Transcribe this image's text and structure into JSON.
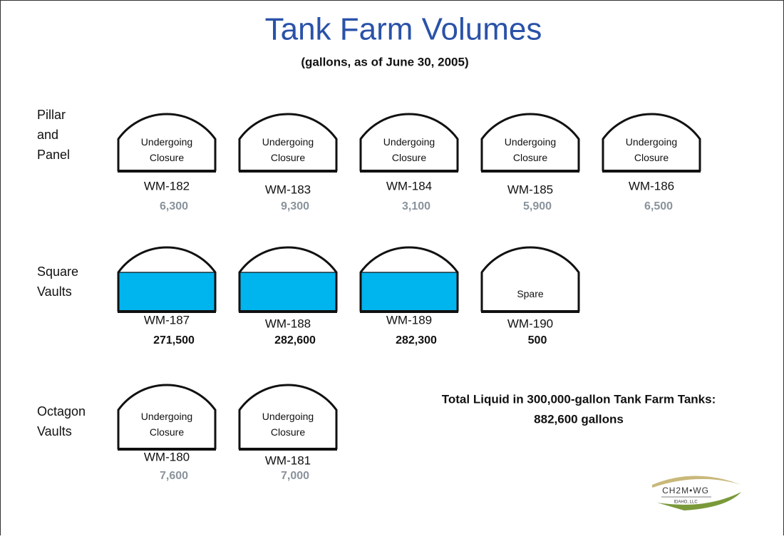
{
  "title": "Tank Farm Volumes",
  "subtitle": "(gallons, as of June 30, 2005)",
  "groups": [
    {
      "label": [
        "Pillar",
        "and",
        "Panel"
      ],
      "volume_color": "#8a939c",
      "tanks": [
        {
          "name": "WM-182",
          "label": [
            "Undergoing",
            "Closure"
          ],
          "volume": "6,300"
        },
        {
          "name": "WM-183",
          "label": [
            "Undergoing",
            "Closure"
          ],
          "volume": "9,300"
        },
        {
          "name": "WM-184",
          "label": [
            "Undergoing",
            "Closure"
          ],
          "volume": "3,100"
        },
        {
          "name": "WM-185",
          "label": [
            "Undergoing",
            "Closure"
          ],
          "volume": "5,900"
        },
        {
          "name": "WM-186",
          "label": [
            "Undergoing",
            "Closure"
          ],
          "volume": "6,500"
        }
      ]
    },
    {
      "label": [
        "Square",
        "Vaults"
      ],
      "volume_color": "#111111",
      "fill_color": "#00b4ee",
      "tanks": [
        {
          "name": "WM-187",
          "volume": "271,500"
        },
        {
          "name": "WM-188",
          "volume": "282,600"
        },
        {
          "name": "WM-189",
          "volume": "282,300"
        },
        {
          "name": "WM-190",
          "label": [
            "Spare"
          ],
          "volume": "500"
        }
      ]
    },
    {
      "label": [
        "Octagon",
        "Vaults"
      ],
      "volume_color": "#8a939c",
      "tanks": [
        {
          "name": "WM-180",
          "label": [
            "Undergoing",
            "Closure"
          ],
          "volume": "7,600"
        },
        {
          "name": "WM-181",
          "label": [
            "Undergoing",
            "Closure"
          ],
          "volume": "7,000"
        }
      ]
    }
  ],
  "total": [
    "Total Liquid in 300,000-gallon Tank Farm Tanks:",
    "882,600 gallons"
  ],
  "logo": {
    "name": "CH2M•WG",
    "sub": "IDAHO, LLC"
  }
}
